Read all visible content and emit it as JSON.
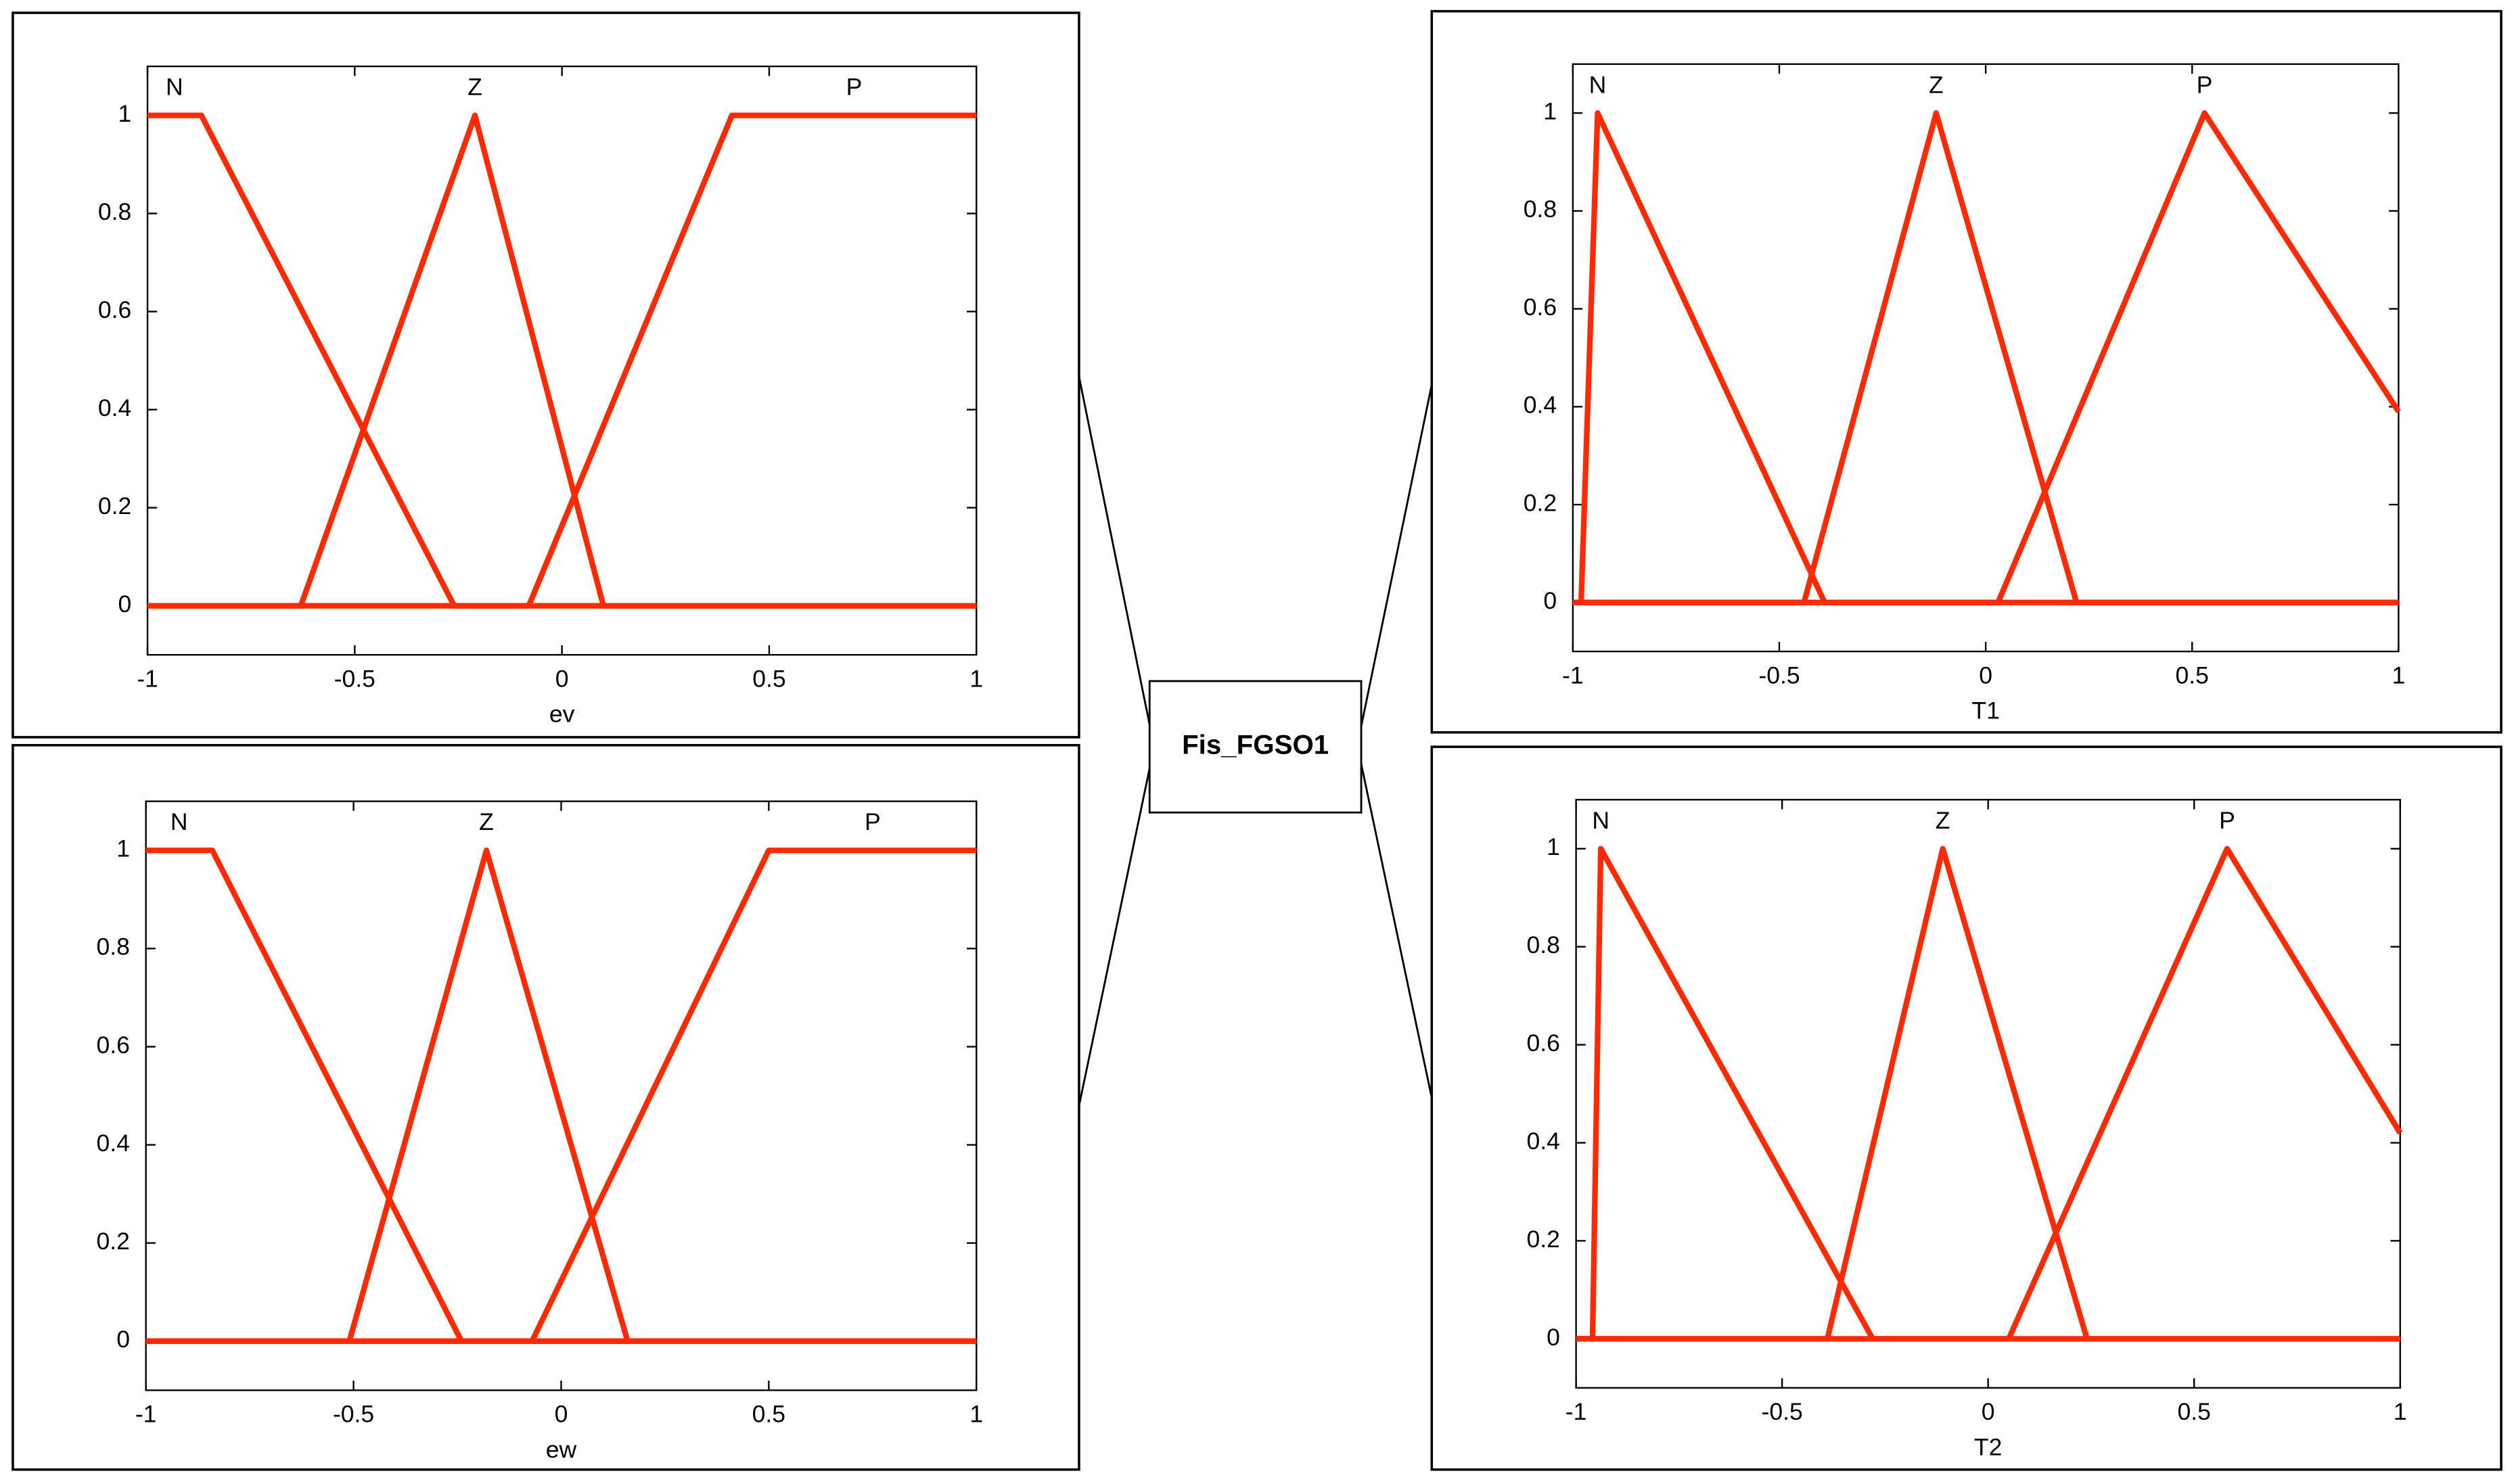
{
  "chart_data": [
    {
      "type": "line",
      "xlabel": "ev",
      "xlim": [
        -1,
        1
      ],
      "ylim": [
        -0.1,
        1.1
      ],
      "xticks": [
        -1,
        -0.5,
        0,
        0.5,
        1
      ],
      "yticks": [
        0,
        0.2,
        0.4,
        0.6,
        0.8,
        1
      ],
      "series": [
        {
          "name": "N",
          "color": "#ff2a00",
          "x": [
            -1,
            -0.87,
            -0.26,
            1
          ],
          "values": [
            1,
            1,
            0,
            0
          ]
        },
        {
          "name": "Z",
          "color": "#ff2a00",
          "x": [
            -1,
            -0.63,
            -0.21,
            0.1,
            1
          ],
          "values": [
            0,
            0,
            1,
            0,
            0
          ]
        },
        {
          "name": "P",
          "color": "#ff2a00",
          "x": [
            -1,
            -0.08,
            0.41,
            1
          ],
          "values": [
            0,
            0,
            1,
            1
          ]
        }
      ]
    },
    {
      "type": "line",
      "xlabel": "T1",
      "xlim": [
        -1,
        1
      ],
      "ylim": [
        -0.1,
        1.1
      ],
      "xticks": [
        -1,
        -0.5,
        0,
        0.5,
        1
      ],
      "yticks": [
        0,
        0.2,
        0.4,
        0.6,
        0.8,
        1
      ],
      "series": [
        {
          "name": "N",
          "color": "#ff2a00",
          "x": [
            -1,
            -0.98,
            -0.94,
            -0.39,
            1
          ],
          "values": [
            0,
            0,
            1,
            0,
            0
          ]
        },
        {
          "name": "Z",
          "color": "#ff2a00",
          "x": [
            -1,
            -0.44,
            -0.12,
            0.22,
            1
          ],
          "values": [
            0,
            0,
            1,
            0,
            0
          ]
        },
        {
          "name": "P",
          "color": "#ff2a00",
          "x": [
            -1,
            0.03,
            0.53,
            1
          ],
          "values": [
            0,
            0,
            1,
            0.39
          ]
        }
      ]
    },
    {
      "type": "line",
      "xlabel": "ew",
      "xlim": [
        -1,
        1
      ],
      "ylim": [
        -0.1,
        1.1
      ],
      "xticks": [
        -1,
        -0.5,
        0,
        0.5,
        1
      ],
      "yticks": [
        0,
        0.2,
        0.4,
        0.6,
        0.8,
        1
      ],
      "series": [
        {
          "name": "N",
          "color": "#ff2a00",
          "x": [
            -1,
            -0.84,
            -0.24,
            1
          ],
          "values": [
            1,
            1,
            0,
            0
          ]
        },
        {
          "name": "Z",
          "color": "#ff2a00",
          "x": [
            -1,
            -0.51,
            -0.18,
            0.16,
            1
          ],
          "values": [
            0,
            0,
            1,
            0,
            0
          ]
        },
        {
          "name": "P",
          "color": "#ff2a00",
          "x": [
            -1,
            -0.07,
            0.5,
            1
          ],
          "values": [
            0,
            0,
            1,
            1
          ]
        }
      ]
    },
    {
      "type": "line",
      "xlabel": "T2",
      "xlim": [
        -1,
        1
      ],
      "ylim": [
        -0.1,
        1.1
      ],
      "xticks": [
        -1,
        -0.5,
        0,
        0.5,
        1
      ],
      "yticks": [
        0,
        0.2,
        0.4,
        0.6,
        0.8,
        1
      ],
      "series": [
        {
          "name": "N",
          "color": "#ff2a00",
          "x": [
            -1,
            -0.96,
            -0.94,
            -0.28,
            1
          ],
          "values": [
            0,
            0,
            1,
            0,
            0
          ]
        },
        {
          "name": "Z",
          "color": "#ff2a00",
          "x": [
            -1,
            -0.39,
            -0.11,
            0.24,
            1
          ],
          "values": [
            0,
            0,
            1,
            0,
            0
          ]
        },
        {
          "name": "P",
          "color": "#ff2a00",
          "x": [
            -1,
            0.05,
            0.58,
            1
          ],
          "values": [
            0,
            0,
            1,
            0.42
          ]
        }
      ]
    }
  ],
  "center": {
    "label": "Fis_FGSO1"
  }
}
